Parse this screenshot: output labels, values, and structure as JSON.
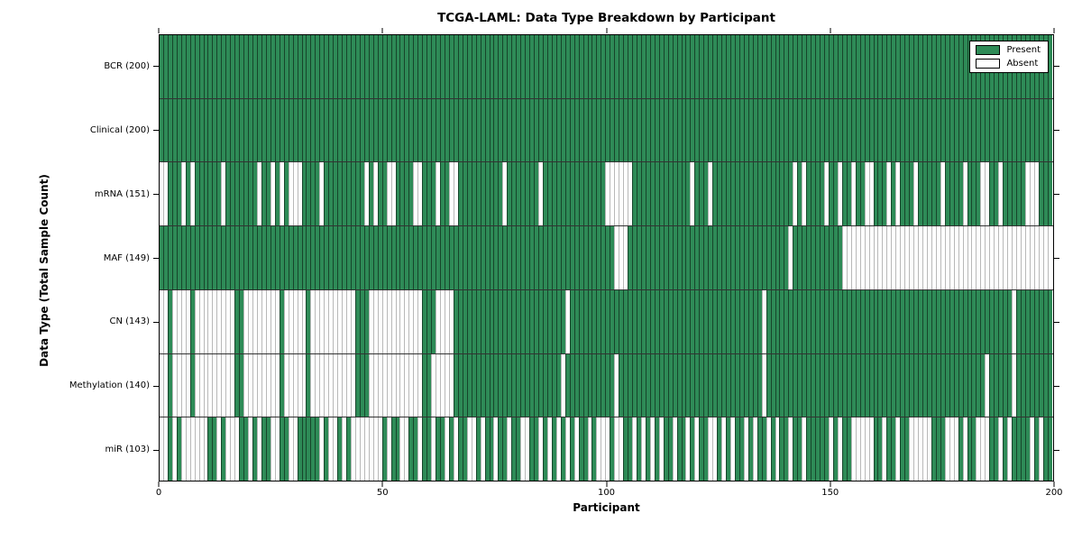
{
  "title": "TCGA-LAML: Data Type Breakdown by Participant",
  "xlabel": "Participant",
  "ylabel": "Data Type (Total Sample Count)",
  "legend": {
    "present_label": "Present",
    "absent_label": "Absent"
  },
  "colors": {
    "present": "#2e8b57",
    "absent": "#ffffff",
    "edge": "#000000",
    "background": "#ffffff"
  },
  "chart_data": {
    "type": "heatmap",
    "title": "TCGA-LAML: Data Type Breakdown by Participant",
    "xlabel": "Participant",
    "ylabel": "Data Type (Total Sample Count)",
    "x_ticks": [
      0,
      50,
      100,
      150,
      200
    ],
    "xlim": [
      0,
      200
    ],
    "n_participants": 200,
    "legend_position": "upper right",
    "grid": false,
    "value_encoding": {
      "present": 1,
      "absent": 0
    },
    "rows": [
      {
        "name": "BCR",
        "label": "BCR (200)",
        "present_count": 200,
        "absent": []
      },
      {
        "name": "Clinical",
        "label": "Clinical (200)",
        "present_count": 200,
        "absent": []
      },
      {
        "name": "mRNA",
        "label": "mRNA (151)",
        "present_count": 151,
        "absent": [
          [
            0,
            1
          ],
          5,
          7,
          14,
          22,
          25,
          27,
          [
            29,
            31
          ],
          36,
          46,
          48,
          [
            51,
            52
          ],
          [
            57,
            58
          ],
          62,
          [
            65,
            66
          ],
          77,
          85,
          [
            100,
            105
          ],
          119,
          123,
          142,
          144,
          149,
          152,
          155,
          [
            158,
            159
          ],
          163,
          165,
          169,
          175,
          180,
          [
            184,
            185
          ],
          188,
          [
            194,
            196
          ]
        ]
      },
      {
        "name": "MAF",
        "label": "MAF (149)",
        "present_count": 149,
        "absent": [
          [
            102,
            104
          ],
          141,
          [
            153,
            199
          ]
        ]
      },
      {
        "name": "CN",
        "label": "CN (143)",
        "present_count": 143,
        "absent": [
          [
            0,
            1
          ],
          [
            3,
            6
          ],
          [
            8,
            16
          ],
          [
            19,
            26
          ],
          [
            28,
            32
          ],
          [
            34,
            43
          ],
          [
            47,
            58
          ],
          [
            62,
            65
          ],
          91,
          135,
          191
        ]
      },
      {
        "name": "Methylation",
        "label": "Methylation (140)",
        "present_count": 140,
        "absent": [
          [
            0,
            1
          ],
          [
            3,
            6
          ],
          [
            8,
            16
          ],
          [
            19,
            26
          ],
          [
            28,
            32
          ],
          [
            34,
            43
          ],
          [
            47,
            58
          ],
          [
            61,
            65
          ],
          90,
          102,
          135,
          185,
          191
        ]
      },
      {
        "name": "miR",
        "label": "miR (103)",
        "present_count": 103,
        "absent": [
          [
            0,
            1
          ],
          3,
          [
            5,
            10
          ],
          13,
          [
            15,
            17
          ],
          20,
          22,
          [
            25,
            26
          ],
          [
            29,
            30
          ],
          36,
          [
            38,
            39
          ],
          41,
          [
            43,
            49
          ],
          51,
          [
            54,
            55
          ],
          58,
          61,
          64,
          66,
          [
            69,
            70
          ],
          72,
          75,
          78,
          [
            81,
            82
          ],
          85,
          87,
          89,
          91,
          93,
          96,
          [
            98,
            99
          ],
          100,
          [
            102,
            103
          ],
          106,
          108,
          110,
          112,
          115,
          118,
          120,
          [
            123,
            124
          ],
          126,
          128,
          131,
          133,
          136,
          138,
          141,
          144,
          150,
          152,
          [
            155,
            159
          ],
          162,
          165,
          [
            168,
            172
          ],
          [
            176,
            178
          ],
          180,
          [
            183,
            185
          ],
          188,
          190,
          195,
          197
        ]
      }
    ]
  }
}
